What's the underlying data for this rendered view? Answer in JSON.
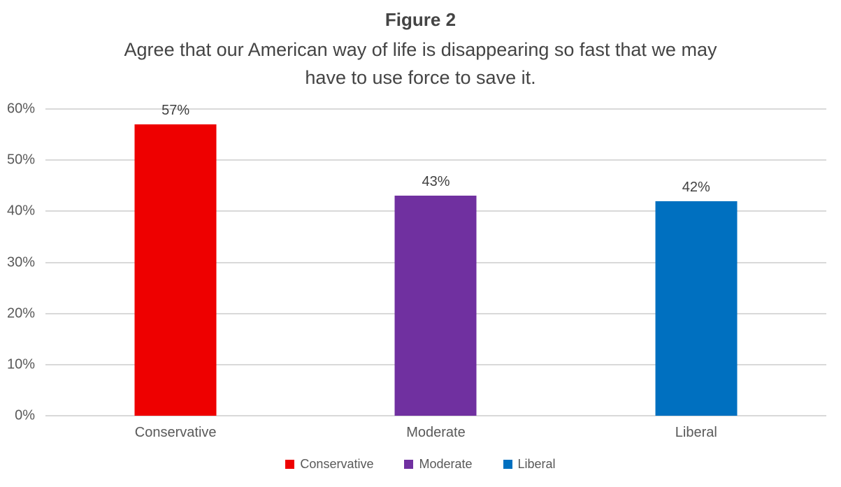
{
  "figure": {
    "title": "Figure 2",
    "subtitle_lines": [
      "Agree that our American way of life is disappearing so fast that we may",
      "have to use force to save it."
    ]
  },
  "chart_data": {
    "type": "bar",
    "title": "Figure 2",
    "subtitle": "Agree that our American way of life is disappearing so fast that we may have to use force to save it.",
    "categories": [
      "Conservative",
      "Moderate",
      "Liberal"
    ],
    "values": [
      57,
      43,
      42
    ],
    "data_labels": [
      "57%",
      "43%",
      "42%"
    ],
    "bar_colors": [
      "#EE0000",
      "#7030A0",
      "#0070C0"
    ],
    "xlabel": "",
    "ylabel": "",
    "ylim": [
      0,
      60
    ],
    "yticks": [
      {
        "value": 0,
        "label": "0%"
      },
      {
        "value": 10,
        "label": "10%"
      },
      {
        "value": 20,
        "label": "20%"
      },
      {
        "value": 30,
        "label": "30%"
      },
      {
        "value": 40,
        "label": "40%"
      },
      {
        "value": 50,
        "label": "50%"
      },
      {
        "value": 60,
        "label": "60%"
      }
    ],
    "grid": true,
    "legend": {
      "position": "bottom",
      "entries": [
        {
          "label": "Conservative",
          "color": "#EE0000"
        },
        {
          "label": "Moderate",
          "color": "#7030A0"
        },
        {
          "label": "Liberal",
          "color": "#0070C0"
        }
      ]
    }
  },
  "style_colors": {
    "background": "#FFFFFF",
    "gridline": "#D9D9D9",
    "title_text": "#444444",
    "data_label_text": "#404040",
    "axis_text": "#595959"
  }
}
